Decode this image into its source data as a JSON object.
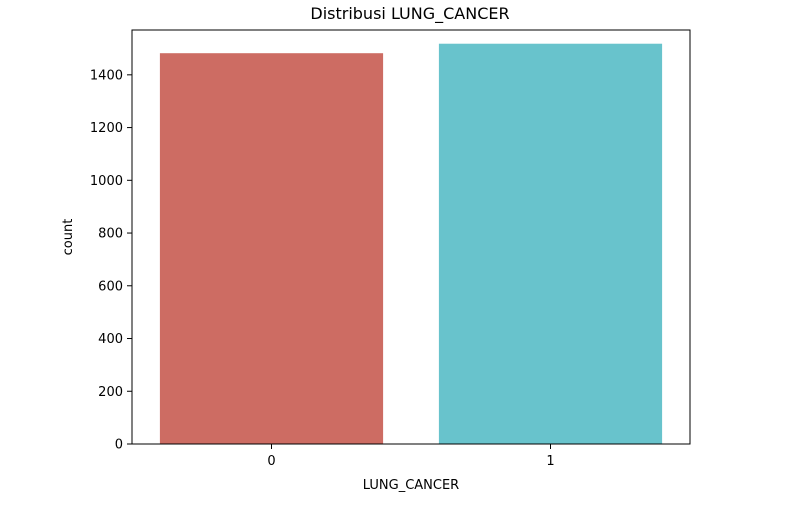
{
  "chart_data": {
    "type": "bar",
    "title": "Distribusi LUNG_CANCER",
    "xlabel": "LUNG_CANCER",
    "ylabel": "count",
    "categories": [
      "0",
      "1"
    ],
    "values": [
      1482,
      1518
    ],
    "ylim": [
      0,
      1570
    ],
    "yticks": [
      0,
      200,
      400,
      600,
      800,
      1000,
      1200,
      1400
    ],
    "grid": false,
    "bar_colors": [
      "#cd6c63",
      "#68c3cc"
    ]
  }
}
